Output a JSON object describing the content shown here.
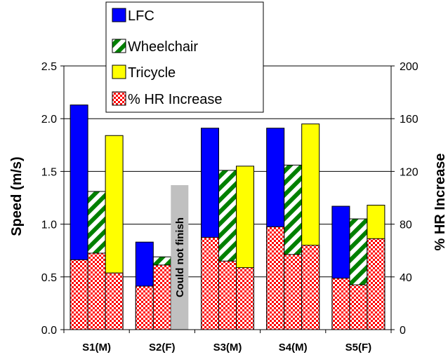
{
  "chart_data": {
    "type": "bar",
    "categories": [
      "S1(M)",
      "S2(F)",
      "S3(M)",
      "S4(M)",
      "S5(F)"
    ],
    "ylabel": "Speed (m/s)",
    "y2label": "% HR Increase",
    "ylim": [
      0,
      2.5
    ],
    "y_ticks": [
      "0.0",
      "0.5",
      "1.0",
      "1.5",
      "2.0",
      "2.5"
    ],
    "y2lim": [
      0,
      200
    ],
    "y2_ticks": [
      "0",
      "40",
      "80",
      "120",
      "160",
      "200"
    ],
    "grid": true,
    "legend_position": "top-center",
    "series": [
      {
        "name": "LFC",
        "axis": "left",
        "color": "#0000ff",
        "pattern": "solid",
        "values": [
          2.13,
          0.83,
          1.91,
          1.91,
          1.17
        ]
      },
      {
        "name": "Wheelchair",
        "axis": "left",
        "color": "#008000",
        "pattern": "diagonal-stripes",
        "values": [
          1.31,
          0.69,
          1.51,
          1.56,
          1.05
        ]
      },
      {
        "name": "Tricycle",
        "axis": "left",
        "color": "#ffff00",
        "pattern": "solid",
        "values": [
          1.84,
          null,
          1.55,
          1.95,
          1.18
        ]
      },
      {
        "name": "% HR Increase",
        "axis": "right",
        "color": "#ff0000",
        "pattern": "checkered",
        "values": [
          [
            53,
            58,
            43
          ],
          [
            33,
            49,
            null
          ],
          [
            70,
            52,
            47
          ],
          [
            78,
            57,
            64
          ],
          [
            39,
            34,
            69
          ]
        ]
      }
    ],
    "annotation": {
      "text": "Could not finish",
      "category": "S2(F)",
      "slot": 2,
      "height": 1.37
    }
  }
}
